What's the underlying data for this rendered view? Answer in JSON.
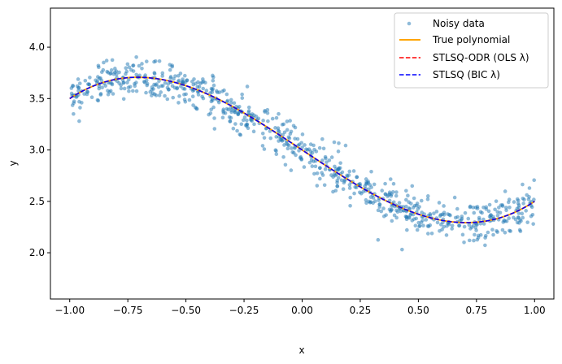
{
  "chart_data": {
    "type": "scatter",
    "title": "",
    "xlabel": "x",
    "ylabel": "y",
    "xlim": [
      -1.083,
      1.083
    ],
    "ylim": [
      1.55,
      4.38
    ],
    "xticks": [
      -1.0,
      -0.75,
      -0.5,
      -0.25,
      0.0,
      0.25,
      0.5,
      0.75,
      1.0
    ],
    "xtick_labels": [
      "−1.00",
      "−0.75",
      "−0.50",
      "−0.25",
      "0.00",
      "0.25",
      "0.50",
      "0.75",
      "1.00"
    ],
    "yticks": [
      2.0,
      2.5,
      3.0,
      3.5,
      4.0
    ],
    "ytick_labels": [
      "2.0",
      "2.5",
      "3.0",
      "3.5",
      "4.0"
    ],
    "grid": false,
    "legend_position": "top-right",
    "polynomial_coefficients": {
      "c0": 3.0,
      "c1": -1.5,
      "c2": 0.0,
      "c3": 1.0
    },
    "scatter_noise_sd": 0.1,
    "series": [
      {
        "name": "Noisy data",
        "kind": "scatter",
        "color": "#1f77b4",
        "n_points": 800,
        "x_range": [
          -1.0,
          1.0
        ]
      },
      {
        "name": "True polynomial",
        "kind": "line",
        "style": "solid",
        "color": "#ffa500"
      },
      {
        "name": "STLSQ-ODR (OLS λ)",
        "kind": "line",
        "style": "dashed",
        "color": "#ff0000"
      },
      {
        "name": "STLSQ (BIC λ)",
        "kind": "line",
        "style": "dashed",
        "color": "#0000ff"
      }
    ]
  }
}
